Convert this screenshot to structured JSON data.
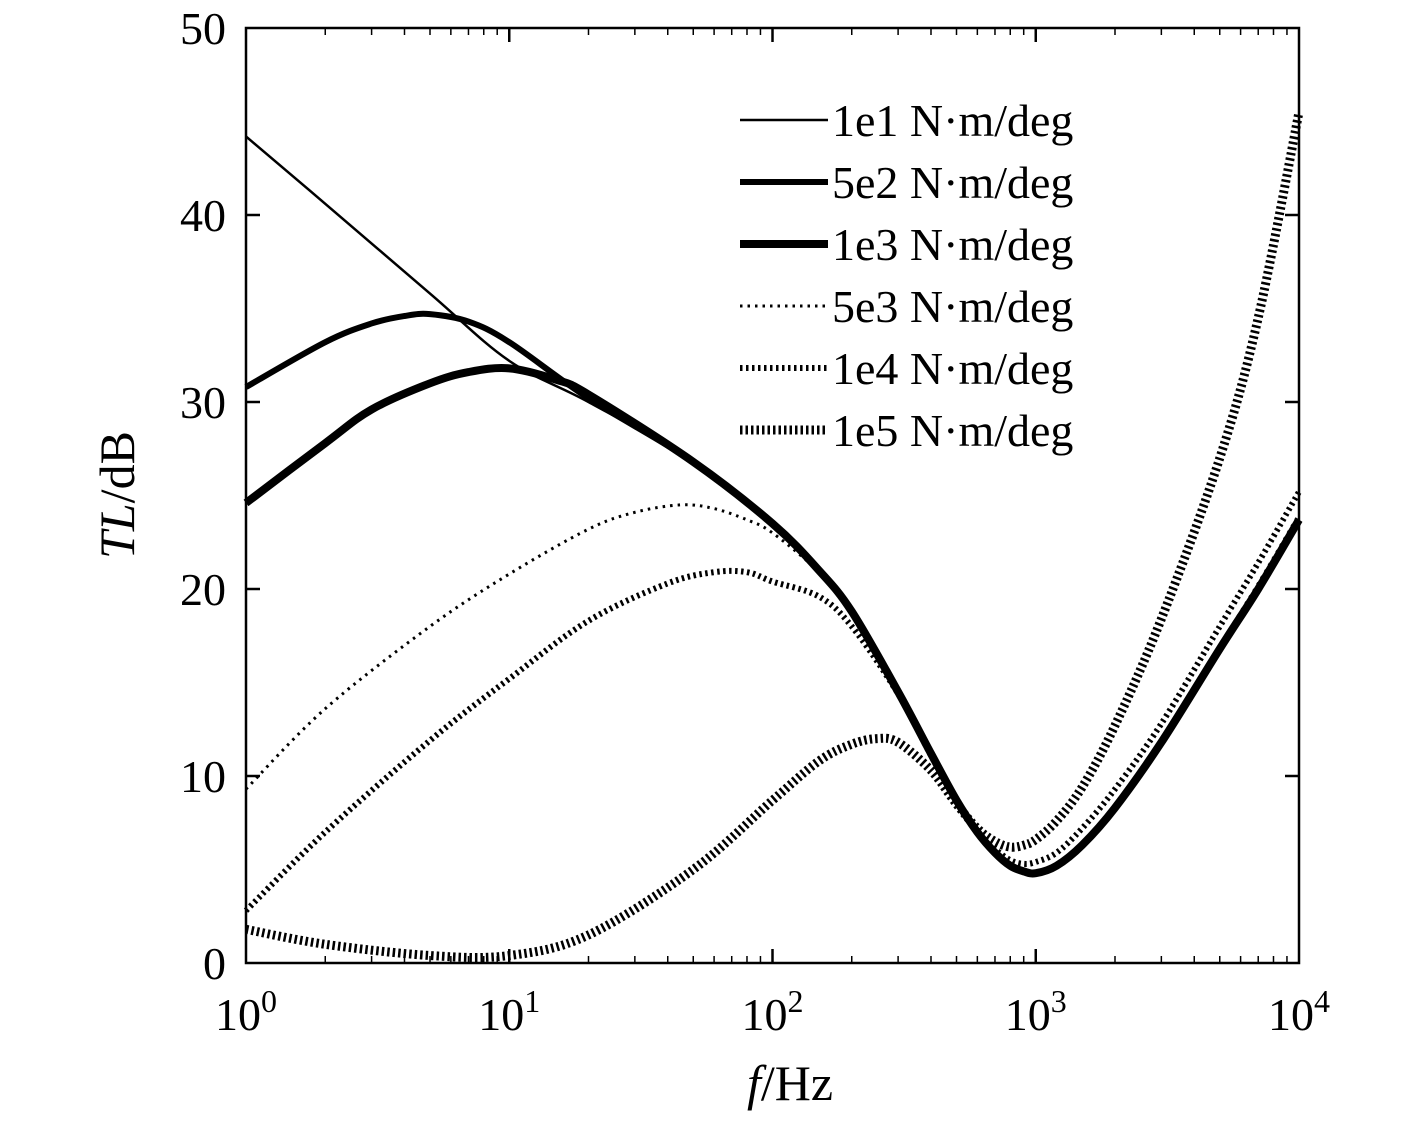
{
  "chart_data": {
    "type": "line",
    "xscale": "log",
    "xlim": [
      1,
      10000
    ],
    "ylim": [
      0,
      50
    ],
    "grid": false,
    "legend_position": "top-right",
    "xlabel": {
      "italic": "f",
      "rest": "/Hz"
    },
    "ylabel": {
      "italic": "TL",
      "rest": "/dB"
    },
    "xticks": [
      {
        "value": 1,
        "base": "10",
        "exp": "0"
      },
      {
        "value": 10,
        "base": "10",
        "exp": "1"
      },
      {
        "value": 100,
        "base": "10",
        "exp": "2"
      },
      {
        "value": 1000,
        "base": "10",
        "exp": "3"
      },
      {
        "value": 10000,
        "base": "10",
        "exp": "4"
      }
    ],
    "yticks": [
      {
        "value": 0,
        "label": "0"
      },
      {
        "value": 10,
        "label": "10"
      },
      {
        "value": 20,
        "label": "20"
      },
      {
        "value": 30,
        "label": "30"
      },
      {
        "value": 40,
        "label": "40"
      },
      {
        "value": 50,
        "label": "50"
      }
    ],
    "series": [
      {
        "name": "1e1 N·m/deg",
        "style": "solid-thin",
        "x": [
          1,
          2,
          5,
          10,
          20,
          50,
          100,
          150,
          200,
          300,
          400,
          500,
          600,
          700,
          800,
          900,
          1000,
          1200,
          1500,
          2000,
          3000,
          5000,
          7000,
          10000
        ],
        "y": [
          44.2,
          40.6,
          35.8,
          32.2,
          30.0,
          26.8,
          23.5,
          21.0,
          18.8,
          14.5,
          11.2,
          8.7,
          7.0,
          5.9,
          5.2,
          4.9,
          4.8,
          5.2,
          6.3,
          8.3,
          11.8,
          16.8,
          20.0,
          23.7
        ]
      },
      {
        "name": "5e2 N·m/deg",
        "style": "solid-thick",
        "x": [
          1,
          2,
          3,
          4,
          5,
          7,
          10,
          20,
          50,
          100,
          150,
          200,
          300,
          400,
          500,
          600,
          700,
          800,
          900,
          1000,
          1200,
          1500,
          2000,
          3000,
          5000,
          7000,
          10000
        ],
        "y": [
          30.8,
          33.2,
          34.2,
          34.6,
          34.7,
          34.3,
          33.2,
          30.2,
          26.8,
          23.5,
          21.0,
          18.8,
          14.5,
          11.2,
          8.7,
          7.0,
          5.9,
          5.2,
          4.9,
          4.8,
          5.2,
          6.3,
          8.3,
          11.8,
          16.8,
          20.0,
          23.7
        ]
      },
      {
        "name": "1e3 N·m/deg",
        "style": "solid-thicker",
        "x": [
          1,
          2,
          3,
          5,
          7,
          10,
          15,
          20,
          50,
          100,
          150,
          200,
          300,
          400,
          500,
          600,
          700,
          800,
          900,
          1000,
          1200,
          1500,
          2000,
          3000,
          5000,
          7000,
          10000
        ],
        "y": [
          24.6,
          27.8,
          29.6,
          31.0,
          31.6,
          31.8,
          31.2,
          30.4,
          26.8,
          23.5,
          21.0,
          18.8,
          14.5,
          11.2,
          8.7,
          7.0,
          5.9,
          5.2,
          4.9,
          4.8,
          5.2,
          6.3,
          8.3,
          11.8,
          16.8,
          20.0,
          23.7
        ]
      },
      {
        "name": "5e3 N·m/deg",
        "style": "dotted-thin",
        "x": [
          1,
          2,
          5,
          10,
          20,
          30,
          45,
          60,
          80,
          100,
          150,
          200,
          300,
          400,
          500,
          600,
          700,
          800,
          900,
          1000,
          1200,
          1500,
          2000,
          3000,
          5000,
          7000,
          10000
        ],
        "y": [
          9.3,
          13.6,
          18.0,
          20.8,
          23.2,
          24.1,
          24.5,
          24.3,
          23.7,
          23.0,
          20.9,
          18.7,
          14.5,
          11.2,
          8.7,
          7.0,
          6.0,
          5.3,
          5.0,
          4.9,
          5.3,
          6.4,
          8.4,
          12.0,
          17.0,
          20.3,
          24.0
        ]
      },
      {
        "name": "1e4 N·m/deg",
        "style": "dotted-medium",
        "x": [
          1,
          2,
          5,
          10,
          20,
          40,
          60,
          80,
          100,
          150,
          200,
          300,
          400,
          500,
          600,
          700,
          800,
          900,
          1000,
          1200,
          1500,
          2000,
          3000,
          5000,
          7000,
          10000
        ],
        "y": [
          2.8,
          7.0,
          11.9,
          15.2,
          18.3,
          20.3,
          20.9,
          20.9,
          20.4,
          19.6,
          18.0,
          14.4,
          11.1,
          8.7,
          7.1,
          6.1,
          5.5,
          5.3,
          5.4,
          5.9,
          7.2,
          9.3,
          12.8,
          18.0,
          21.4,
          25.2
        ]
      },
      {
        "name": "1e5 N·m/deg",
        "style": "dotted-thick",
        "x": [
          1,
          2,
          5,
          10,
          20,
          50,
          100,
          150,
          200,
          250,
          300,
          400,
          500,
          600,
          700,
          800,
          900,
          1000,
          1200,
          1500,
          2000,
          3000,
          5000,
          7000,
          10000
        ],
        "y": [
          1.8,
          1.0,
          0.4,
          0.4,
          1.5,
          5.0,
          8.7,
          10.8,
          11.7,
          12.0,
          11.8,
          10.3,
          8.5,
          7.2,
          6.5,
          6.2,
          6.3,
          6.6,
          7.6,
          9.4,
          12.7,
          18.4,
          27.0,
          34.5,
          45.5
        ]
      }
    ]
  }
}
